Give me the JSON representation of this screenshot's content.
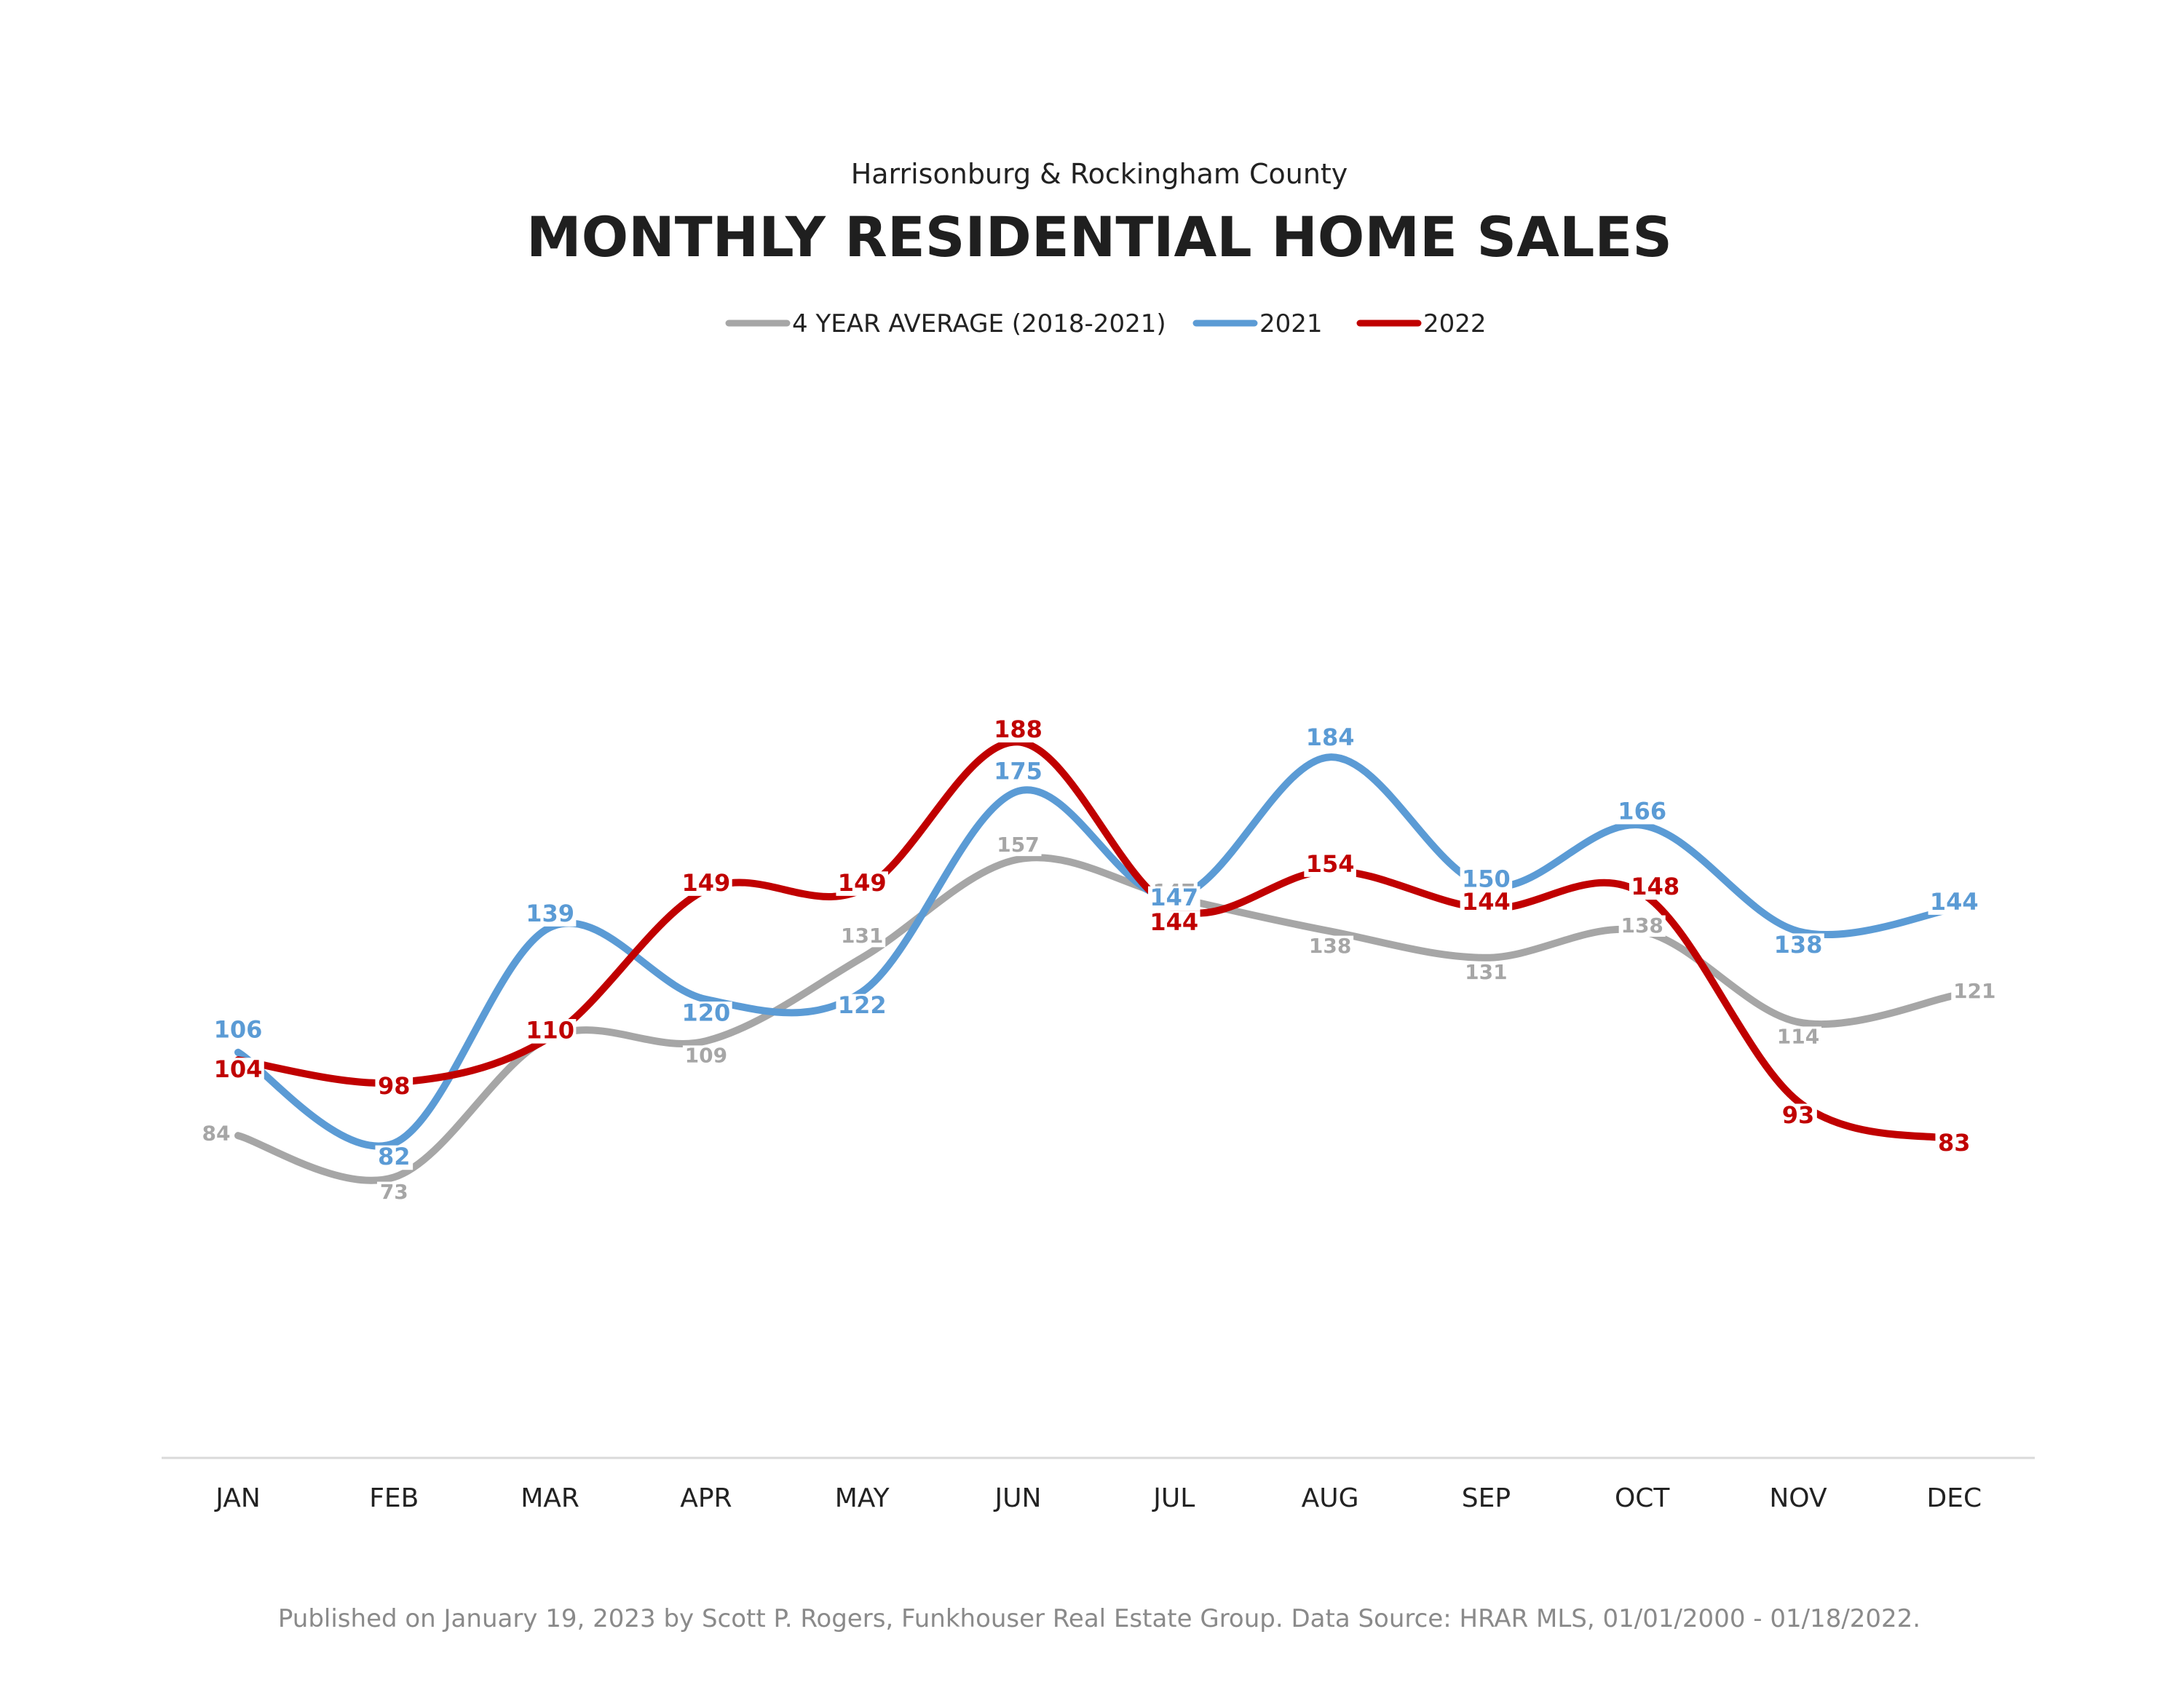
{
  "chart_data": {
    "type": "line",
    "subtitle": "Harrisonburg & Rockingham County",
    "title": "MONTHLY RESIDENTIAL HOME SALES",
    "categories": [
      "JAN",
      "FEB",
      "MAR",
      "APR",
      "MAY",
      "JUN",
      "JUL",
      "AUG",
      "SEP",
      "OCT",
      "NOV",
      "DEC"
    ],
    "ylim": [
      0,
      200
    ],
    "grid": false,
    "smooth": true,
    "legend_position": "top-center",
    "series": [
      {
        "name": "4 YEAR AVERAGE (2018-2021)",
        "color": "#a6a6a6",
        "values": [
          84,
          73,
          110,
          109,
          131,
          157,
          147,
          138,
          131,
          138,
          114,
          121
        ]
      },
      {
        "name": "2021",
        "color": "#5b9bd5",
        "values": [
          106,
          82,
          139,
          120,
          122,
          175,
          147,
          184,
          150,
          166,
          138,
          144
        ]
      },
      {
        "name": "2022",
        "color": "#c00000",
        "values": [
          104,
          98,
          110,
          149,
          149,
          188,
          144,
          154,
          144,
          148,
          93,
          83
        ]
      }
    ],
    "footer": "Published on January 19, 2023 by Scott P. Rogers, Funkhouser Real Estate Group. Data Source: HRAR MLS, 01/01/2000 - 01/18/2022."
  }
}
